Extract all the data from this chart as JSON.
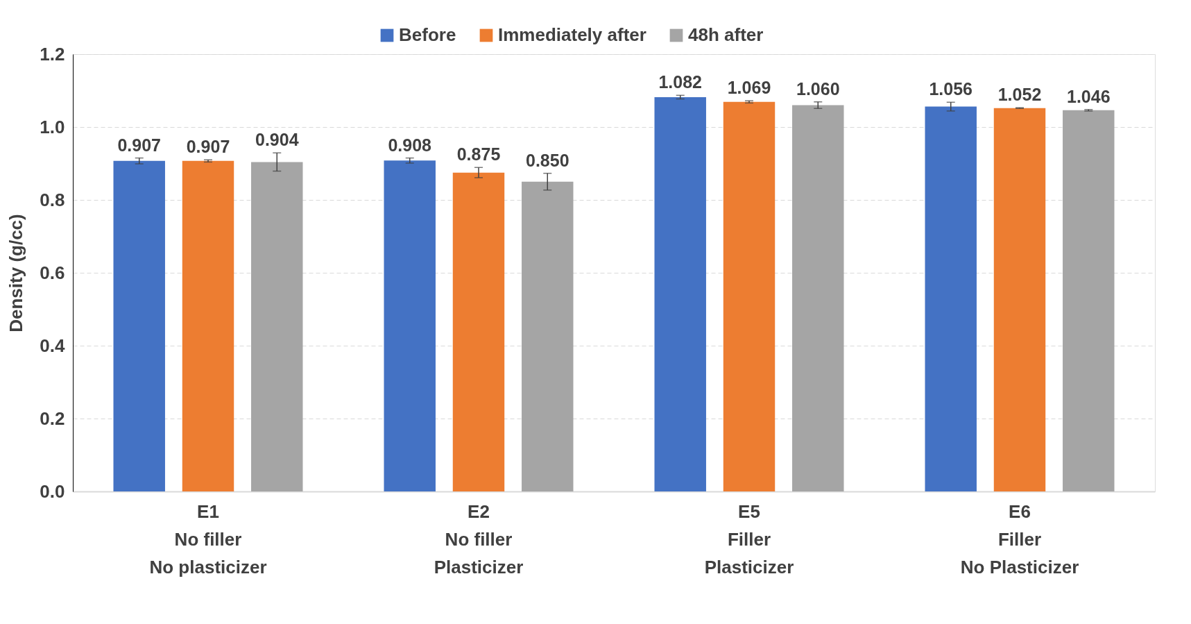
{
  "chart_data": {
    "type": "bar",
    "ylabel": "Density (g/cc)",
    "categories": [
      "E1\nNo filler\nNo plasticizer",
      "E2\nNo filler\nPlasticizer",
      "E5\nFiller\nPlasticizer",
      "E6\nFiller\nNo Plasticizer"
    ],
    "series": [
      {
        "name": "Before",
        "color": "#4472c4",
        "values": [
          0.907,
          0.908,
          1.082,
          1.056
        ],
        "errors": [
          0.008,
          0.007,
          0.005,
          0.012
        ],
        "value_labels": [
          "0.907",
          "0.908",
          "1.082",
          "1.056"
        ]
      },
      {
        "name": "Immediately after",
        "color": "#ed7d31",
        "values": [
          0.907,
          0.875,
          1.069,
          1.052
        ],
        "errors": [
          0.003,
          0.014,
          0.003,
          0.001
        ],
        "value_labels": [
          "0.907",
          "0.875",
          "1.069",
          "1.052"
        ]
      },
      {
        "name": "48h after",
        "color": "#a5a5a5",
        "values": [
          0.904,
          0.85,
          1.06,
          1.046
        ],
        "errors": [
          0.025,
          0.023,
          0.009,
          0.002
        ],
        "value_labels": [
          "0.904",
          "0.850",
          "1.060",
          "1.046"
        ]
      }
    ],
    "ylim": [
      0,
      1.2
    ],
    "yticks": [
      {
        "value": 0,
        "label": "0.0"
      },
      {
        "value": 0.2,
        "label": "0.2"
      },
      {
        "value": 0.4,
        "label": "0.4"
      },
      {
        "value": 0.6,
        "label": "0.6"
      },
      {
        "value": 0.8,
        "label": "0.8"
      },
      {
        "value": 1.0,
        "label": "1.0"
      },
      {
        "value": 1.2,
        "label": "1.2"
      }
    ],
    "grid": "y",
    "legend": "top"
  }
}
